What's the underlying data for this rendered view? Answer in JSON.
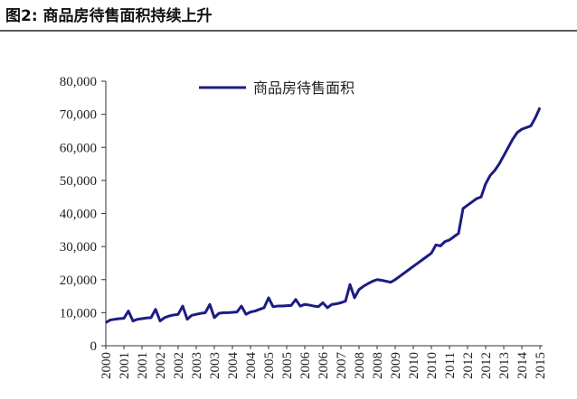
{
  "chart_data": {
    "type": "line",
    "title": "图2:  商品房待售面积持续上升",
    "categories": [
      "2000",
      null,
      null,
      null,
      "2001",
      null,
      null,
      null,
      "2001",
      null,
      null,
      null,
      "2002",
      null,
      null,
      null,
      "2002",
      null,
      null,
      null,
      "2003",
      null,
      null,
      null,
      "2003",
      null,
      null,
      null,
      "2004",
      null,
      null,
      null,
      "2004",
      null,
      null,
      null,
      "2005",
      null,
      null,
      null,
      "2005",
      null,
      null,
      null,
      "2006",
      null,
      null,
      null,
      "2006",
      null,
      null,
      null,
      "2007",
      null,
      null,
      null,
      "2008",
      null,
      null,
      null,
      "2008",
      null,
      null,
      null,
      "2009",
      null,
      null,
      null,
      "2010",
      null,
      null,
      null,
      "2010",
      null,
      null,
      null,
      "2011",
      null,
      null,
      null,
      "2012",
      null,
      null,
      null,
      "2012",
      null,
      null,
      null,
      "2013",
      null,
      null,
      null,
      "2014",
      null,
      null,
      null,
      "2015"
    ],
    "series": [
      {
        "name": "商品房待售面积",
        "color": "#1c1c82",
        "values": [
          7000,
          7800,
          8000,
          8200,
          8300,
          10500,
          7500,
          8000,
          8200,
          8400,
          8500,
          11000,
          7500,
          8500,
          9000,
          9300,
          9500,
          12000,
          8000,
          9200,
          9500,
          9800,
          10000,
          12500,
          8500,
          9800,
          10000,
          10000,
          10100,
          10200,
          12000,
          9500,
          10200,
          10500,
          11000,
          11500,
          14500,
          11800,
          12000,
          12000,
          12100,
          12200,
          14000,
          12000,
          12500,
          12300,
          12000,
          11800,
          13000,
          11500,
          12500,
          12700,
          13000,
          13500,
          18500,
          14500,
          17000,
          18000,
          18800,
          19500,
          20000,
          19800,
          19500,
          19200,
          20000,
          21000,
          22000,
          23000,
          24000,
          25000,
          26000,
          27000,
          28000,
          30500,
          30200,
          31500,
          32000,
          33000,
          34000,
          41500,
          42500,
          43500,
          44500,
          45000,
          49000,
          51500,
          53000,
          55000,
          57500,
          60000,
          62500,
          64500,
          65500,
          66000,
          66500,
          69000,
          72000
        ]
      }
    ],
    "ylim": [
      0,
      80000
    ],
    "yticks": [
      0,
      {
        "value": 10000,
        "label": "10,000"
      },
      {
        "value": 20000,
        "label": "20,000"
      },
      {
        "value": 30000,
        "label": "30,000"
      },
      {
        "value": 40000,
        "label": "40,000"
      },
      {
        "value": 50000,
        "label": "50,000"
      },
      {
        "value": 60000,
        "label": "60,000"
      },
      {
        "value": 70000,
        "label": "70,000"
      },
      {
        "value": 80000,
        "label": "80,000"
      }
    ],
    "legend": "top-left"
  }
}
